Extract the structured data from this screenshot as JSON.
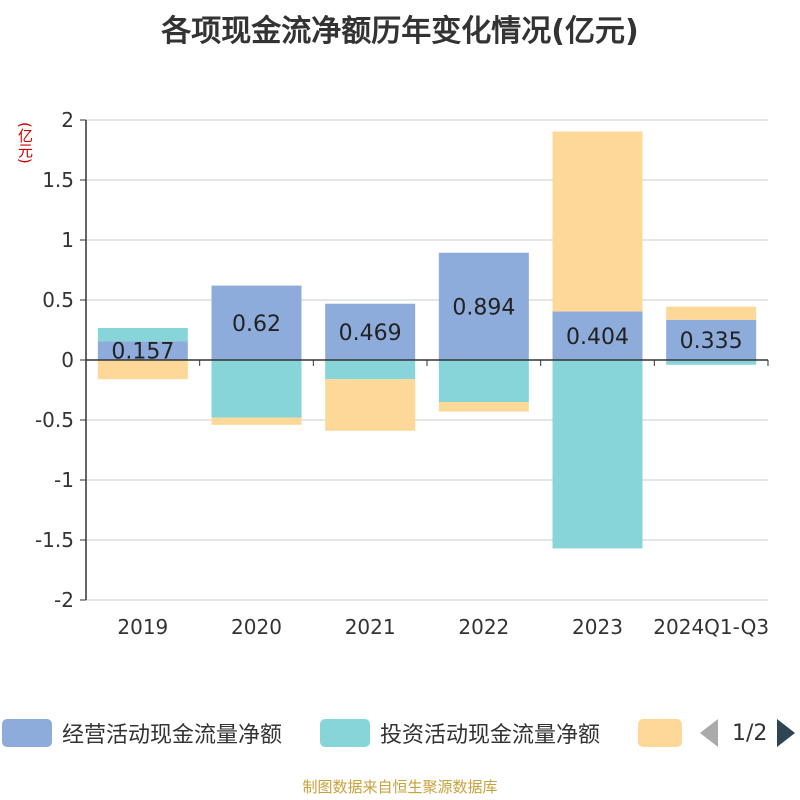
{
  "title": "各项现金流净额历年变化情况(亿元)",
  "source": "制图数据来自恒生聚源数据库",
  "legend_pager": {
    "text": "1/2",
    "prev_icon": "triangle-left-icon",
    "next_icon": "triangle-right-icon"
  },
  "chart_data": {
    "type": "bar",
    "stacked": true,
    "unit_label": "(亿元)",
    "categories": [
      "2019",
      "2020",
      "2021",
      "2022",
      "2023",
      "2024Q1-Q3"
    ],
    "ylim": [
      -2,
      2
    ],
    "yticks": [
      2,
      1.5,
      1,
      0.5,
      0,
      -0.5,
      -1,
      -1.5,
      -2
    ],
    "ytick_labels": [
      "2",
      "1.5",
      "1",
      "0.5",
      "0",
      "-0.5",
      "-1",
      "-1.5",
      "-2"
    ],
    "series": [
      {
        "name": "经营活动现金流量净额",
        "color": "#8eacdb",
        "values": [
          0.157,
          0.62,
          0.469,
          0.894,
          0.404,
          0.335
        ],
        "labels": [
          "0.157",
          "0.62",
          "0.469",
          "0.894",
          "0.404",
          "0.335"
        ]
      },
      {
        "name": "投资活动现金流量净额",
        "color": "#87d5d8",
        "values": [
          0.11,
          -0.48,
          -0.16,
          -0.35,
          -1.57,
          -0.04
        ]
      },
      {
        "name": "",
        "color": "#fed899",
        "values": [
          -0.16,
          -0.06,
          -0.43,
          -0.08,
          1.5,
          0.11
        ]
      }
    ]
  }
}
